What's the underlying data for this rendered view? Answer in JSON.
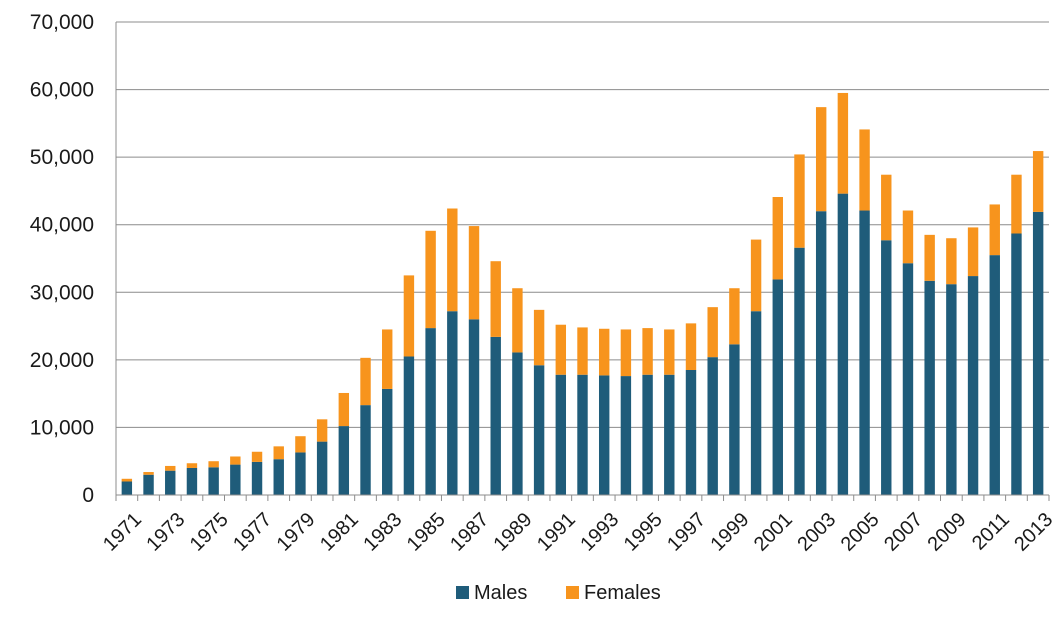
{
  "chart_data": {
    "type": "bar",
    "stacked": true,
    "title": "",
    "xlabel": "",
    "ylabel": "",
    "ylim": [
      0,
      70000
    ],
    "y_ticks": [
      0,
      10000,
      20000,
      30000,
      40000,
      50000,
      60000,
      70000
    ],
    "y_tick_labels": [
      "0",
      "10,000",
      "20,000",
      "30,000",
      "40,000",
      "50,000",
      "60,000",
      "70,000"
    ],
    "grid": "horizontal",
    "legend_position": "bottom",
    "categories": [
      "1971",
      "1972",
      "1973",
      "1974",
      "1975",
      "1976",
      "1977",
      "1978",
      "1979",
      "1980",
      "1981",
      "1982",
      "1983",
      "1984",
      "1985",
      "1986",
      "1987",
      "1988",
      "1989",
      "1990",
      "1991",
      "1992",
      "1993",
      "1994",
      "1995",
      "1996",
      "1997",
      "1998",
      "1999",
      "2000",
      "2001",
      "2002",
      "2003",
      "2004",
      "2005",
      "2006",
      "2007",
      "2008",
      "2009",
      "2010",
      "2011",
      "2012",
      "2013"
    ],
    "x_tick_labels": [
      "1971",
      "1973",
      "1975",
      "1977",
      "1979",
      "1981",
      "1983",
      "1985",
      "1987",
      "1989",
      "1991",
      "1993",
      "1995",
      "1997",
      "1999",
      "2001",
      "2003",
      "2005",
      "2007",
      "2009",
      "2011",
      "2013"
    ],
    "series": [
      {
        "name": "Males",
        "color": "#1f5c7a",
        "values": [
          2000,
          3000,
          3600,
          4000,
          4100,
          4500,
          4900,
          5300,
          6300,
          7900,
          10200,
          13300,
          15700,
          20500,
          24700,
          27200,
          26000,
          23400,
          21100,
          19200,
          17800,
          17800,
          17700,
          17600,
          17800,
          17800,
          18500,
          20400,
          22300,
          27200,
          31900,
          36600,
          42000,
          44600,
          42100,
          37700,
          34300,
          31700,
          31200,
          32400,
          35500,
          38700,
          41900
        ]
      },
      {
        "name": "Females",
        "color": "#f7941d",
        "values": [
          400,
          400,
          700,
          700,
          900,
          1200,
          1500,
          1900,
          2400,
          3300,
          4900,
          7000,
          8800,
          12000,
          14400,
          15200,
          13800,
          11200,
          9500,
          8200,
          7400,
          7000,
          6900,
          6900,
          6900,
          6700,
          6900,
          7400,
          8300,
          10600,
          12200,
          13800,
          15400,
          14900,
          12000,
          9700,
          7800,
          6800,
          6800,
          7200,
          7500,
          8700,
          9000
        ]
      }
    ]
  }
}
